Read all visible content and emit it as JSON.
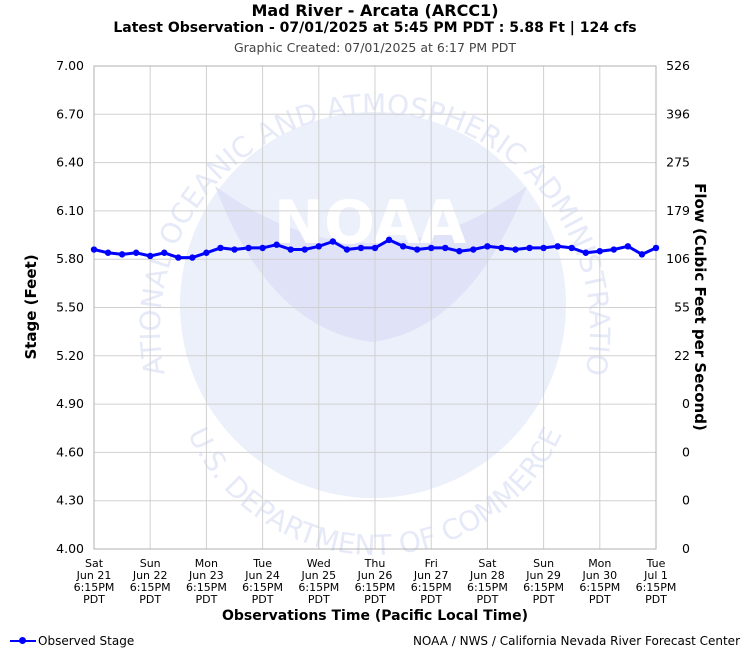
{
  "header": {
    "title": "Mad River - Arcata (ARCC1)",
    "subtitle": "Latest Observation - 07/01/2025 at 5:45 PM PDT : 5.88 Ft | 124 cfs",
    "created": "Graphic Created: 07/01/2025 at 6:17 PM PDT"
  },
  "footer": {
    "legend_label": "Observed Stage",
    "credit": "NOAA / NWS / California Nevada River Forecast Center"
  },
  "watermark": {
    "logo_text": "NOAA",
    "ring_text_top": "NATIONAL OCEANIC AND ATMOSPHERIC ADMINISTRATION",
    "ring_text_bottom": "U.S. DEPARTMENT OF COMMERCE"
  },
  "colors": {
    "series": "#0000ff",
    "grid": "#d0d0d0",
    "watermark": "#e6eaf8"
  },
  "chart_data": {
    "type": "line",
    "xlabel": "Observations Time (Pacific Local Time)",
    "ylabel": "Stage (Feet)",
    "y2label": "Flow (Cubic Feet per Second)",
    "ylim": [
      4.0,
      7.0
    ],
    "yticks": [
      "4.00",
      "4.30",
      "4.60",
      "4.90",
      "5.20",
      "5.50",
      "5.80",
      "6.10",
      "6.40",
      "6.70",
      "7.00"
    ],
    "y2ticks": [
      "0",
      "0",
      "0",
      "0",
      "22",
      "55",
      "106",
      "179",
      "275",
      "396",
      "526"
    ],
    "xticks": [
      [
        "Sat",
        "Jun 21",
        "6:15PM",
        "PDT"
      ],
      [
        "Sun",
        "Jun 22",
        "6:15PM",
        "PDT"
      ],
      [
        "Mon",
        "Jun 23",
        "6:15PM",
        "PDT"
      ],
      [
        "Tue",
        "Jun 24",
        "6:15PM",
        "PDT"
      ],
      [
        "Wed",
        "Jun 25",
        "6:15PM",
        "PDT"
      ],
      [
        "Thu",
        "Jun 26",
        "6:15PM",
        "PDT"
      ],
      [
        "Fri",
        "Jun 27",
        "6:15PM",
        "PDT"
      ],
      [
        "Sat",
        "Jun 28",
        "6:15PM",
        "PDT"
      ],
      [
        "Sun",
        "Jun 29",
        "6:15PM",
        "PDT"
      ],
      [
        "Mon",
        "Jun 30",
        "6:15PM",
        "PDT"
      ],
      [
        "Tue",
        "Jul 1",
        "6:15PM",
        "PDT"
      ]
    ],
    "grid": true,
    "legend_position": "bottom-left",
    "series": [
      {
        "name": "Observed Stage",
        "x": [
          0,
          0.25,
          0.5,
          0.75,
          1,
          1.25,
          1.5,
          1.75,
          2,
          2.25,
          2.5,
          2.75,
          3,
          3.25,
          3.5,
          3.75,
          4,
          4.25,
          4.5,
          4.75,
          5,
          5.25,
          5.5,
          5.75,
          6,
          6.25,
          6.5,
          6.75,
          7,
          7.25,
          7.5,
          7.75,
          8,
          8.25,
          8.5,
          8.75,
          9,
          9.25,
          9.5,
          9.75,
          10
        ],
        "values": [
          5.86,
          5.84,
          5.83,
          5.84,
          5.82,
          5.84,
          5.81,
          5.81,
          5.84,
          5.87,
          5.86,
          5.87,
          5.87,
          5.89,
          5.86,
          5.86,
          5.88,
          5.91,
          5.86,
          5.87,
          5.87,
          5.92,
          5.88,
          5.86,
          5.87,
          5.87,
          5.85,
          5.86,
          5.88,
          5.87,
          5.86,
          5.87,
          5.87,
          5.88,
          5.87,
          5.84,
          5.85,
          5.86,
          5.88,
          5.83,
          5.87
        ]
      }
    ]
  }
}
